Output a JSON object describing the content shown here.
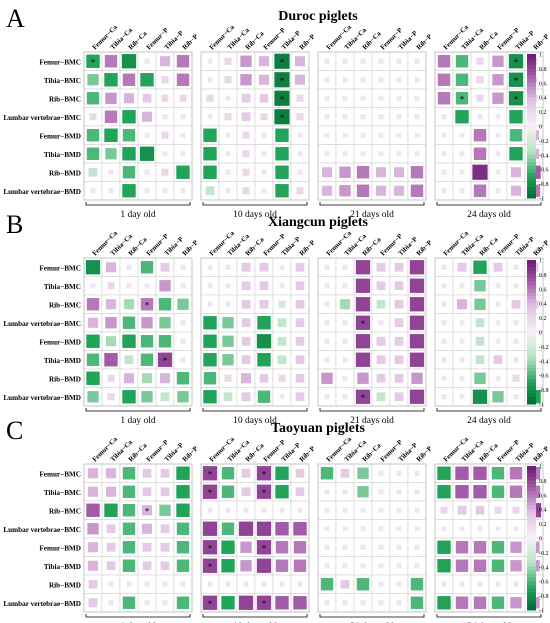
{
  "colors": {
    "negative_strong": "#006b33",
    "negative_mid": "#22a35a",
    "negative_light": "#b9e4c6",
    "neutral": "#f4f2f5",
    "positive_light": "#e2c3e4",
    "positive_mid": "#a35aa8",
    "positive_strong": "#6a1771"
  },
  "legend_ticks": [
    "1",
    "0.8",
    "0.6",
    "0.4",
    "0.2",
    "0",
    "-0.2",
    "-0.4",
    "-0.6",
    "-0.8",
    "-1"
  ],
  "chart_data": [
    {
      "type": "heatmap",
      "panel_letter": "A",
      "title": "Duroc piglets",
      "rows": [
        "Femur−BMC",
        "Tibia−BMC",
        "Rib−BMC",
        "Lumbar vertebrae−BMC",
        "Femur−BMD",
        "Tibia−BMD",
        "Rib−BMD",
        "Lumbar vertebrae−BMD"
      ],
      "columns": [
        "Femur−Ca",
        "Tibia−Ca",
        "Rib−Ca",
        "Femur−P",
        "Tibia−P",
        "Rib−P"
      ],
      "groups": [
        {
          "name": "1 day old",
          "values": [
            [
              -0.7,
              0.6,
              -0.8,
              0.1,
              0.4,
              0.6
            ],
            [
              -0.5,
              -0.7,
              0.6,
              -0.7,
              0.2,
              0.6
            ],
            [
              -0.6,
              0.5,
              0.4,
              0.3,
              0.2,
              0.2
            ],
            [
              0.2,
              0.6,
              -0.7,
              0.4,
              0.1,
              0.1
            ],
            [
              -0.6,
              -0.7,
              -0.6,
              0.1,
              0.2,
              0.1
            ],
            [
              -0.6,
              -0.5,
              -0.7,
              -0.8,
              0.1,
              0.1
            ],
            [
              -0.3,
              0.1,
              -0.6,
              0.1,
              0.2,
              -0.7
            ],
            [
              0.1,
              0.1,
              -0.7,
              0.1,
              0.1,
              0.1
            ]
          ],
          "stars": [
            [
              0,
              0
            ]
          ]
        },
        {
          "name": "10 days old",
          "values": [
            [
              0.1,
              0.2,
              0.5,
              0.4,
              -0.9,
              0.4
            ],
            [
              0.1,
              0.2,
              0.5,
              0.4,
              -0.9,
              0.4
            ],
            [
              0.2,
              0.1,
              0.3,
              0.3,
              -0.9,
              0.2
            ],
            [
              0.1,
              0.2,
              0.3,
              0.2,
              -0.9,
              0.2
            ],
            [
              -0.7,
              0.1,
              0.2,
              0.1,
              -0.7,
              0.1
            ],
            [
              -0.7,
              0.1,
              0.2,
              0.1,
              -0.7,
              0.1
            ],
            [
              -0.7,
              0.1,
              0.2,
              0.1,
              -0.7,
              0.1
            ],
            [
              -0.3,
              0.1,
              0.2,
              0.1,
              -0.7,
              0.2
            ]
          ],
          "stars": [
            [
              0,
              4
            ],
            [
              1,
              4
            ],
            [
              2,
              4
            ],
            [
              3,
              4
            ]
          ]
        },
        {
          "name": "21 days old",
          "values": [
            [
              0.1,
              0.1,
              0.1,
              0.1,
              0.1,
              0.1
            ],
            [
              0.1,
              0.1,
              0.1,
              0.1,
              0.1,
              0.1
            ],
            [
              0.1,
              0.1,
              0.1,
              0.1,
              0.1,
              0.1
            ],
            [
              0.1,
              0.1,
              0.1,
              0.1,
              0.1,
              0.1
            ],
            [
              0.1,
              0.1,
              0.1,
              0.1,
              0.1,
              0.1
            ],
            [
              0.1,
              0.1,
              0.1,
              0.1,
              0.1,
              0.1
            ],
            [
              0.4,
              0.5,
              0.6,
              0.4,
              0.4,
              0.6
            ],
            [
              0.4,
              0.5,
              0.6,
              0.4,
              0.4,
              0.6
            ]
          ],
          "stars": []
        },
        {
          "name": "24 days old",
          "values": [
            [
              0.6,
              -0.6,
              0.2,
              0.5,
              -0.8,
              0.2
            ],
            [
              0.6,
              -0.6,
              0.2,
              0.5,
              -0.8,
              0.2
            ],
            [
              0.6,
              -0.6,
              0.2,
              0.5,
              -0.8,
              0.2
            ],
            [
              0.1,
              -0.7,
              0.1,
              0.1,
              -0.7,
              0.1
            ],
            [
              0.1,
              0.1,
              0.6,
              0.1,
              -0.6,
              0.4
            ],
            [
              0.1,
              0.1,
              0.6,
              0.1,
              -0.7,
              0.4
            ],
            [
              0.1,
              0.1,
              0.9,
              0.1,
              0.4,
              0.7
            ],
            [
              0.1,
              0.1,
              0.6,
              0.1,
              0.4,
              0.6
            ]
          ],
          "stars": [
            [
              0,
              4
            ],
            [
              1,
              4
            ],
            [
              2,
              1
            ],
            [
              2,
              4
            ]
          ]
        }
      ]
    },
    {
      "type": "heatmap",
      "panel_letter": "B",
      "title": "Xiangcun piglets",
      "rows": [
        "Femur−BMC",
        "Tibia−BMC",
        "Rib−BMC",
        "Lumbar vertebrae−BMC",
        "Femur−BMD",
        "Tibia−BMD",
        "Rib−BMD",
        "Lumbar vertebrae−BMD"
      ],
      "columns": [
        "Femur−Ca",
        "Tibia−Ca",
        "Rib−Ca",
        "Femur−P",
        "Tibia−P",
        "Rib−P"
      ],
      "groups": [
        {
          "name": "1 day old",
          "values": [
            [
              -0.8,
              0.4,
              0.1,
              -0.6,
              0.3,
              0.1
            ],
            [
              0.1,
              0.2,
              0.1,
              0.1,
              0.5,
              0.1
            ],
            [
              0.6,
              0.4,
              -0.4,
              0.6,
              -0.6,
              -0.5
            ],
            [
              0.4,
              0.5,
              -0.6,
              0.5,
              -0.5,
              0.1
            ],
            [
              -0.7,
              -0.4,
              -0.7,
              -0.6,
              -0.6,
              0.1
            ],
            [
              -0.6,
              0.7,
              -0.3,
              -0.6,
              0.8,
              0.1
            ],
            [
              -0.7,
              0.2,
              0.4,
              -0.4,
              0.4,
              -0.6
            ],
            [
              -0.5,
              0.2,
              -0.7,
              -0.5,
              -0.3,
              -0.5
            ]
          ],
          "stars": [
            [
              2,
              3
            ],
            [
              5,
              4
            ]
          ]
        },
        {
          "name": "10 days old",
          "values": [
            [
              0.1,
              0.1,
              0.3,
              0.3,
              0.1,
              0.3
            ],
            [
              0.1,
              0.1,
              0.3,
              0.3,
              0.1,
              0.3
            ],
            [
              0.1,
              0.1,
              0.3,
              0.3,
              -0.2,
              0.3
            ],
            [
              -0.7,
              -0.5,
              0.3,
              -0.7,
              -0.3,
              0.3
            ],
            [
              -0.7,
              -0.5,
              0.3,
              -0.8,
              -0.3,
              0.3
            ],
            [
              -0.7,
              -0.5,
              0.3,
              -0.7,
              -0.3,
              0.3
            ],
            [
              -0.6,
              0.2,
              0.4,
              0.3,
              0.2,
              0.3
            ],
            [
              -0.7,
              -0.3,
              0.3,
              -0.6,
              0.1,
              0.3
            ]
          ],
          "stars": []
        },
        {
          "name": "21 days old",
          "values": [
            [
              0.1,
              0.1,
              0.8,
              0.3,
              0.3,
              0.8
            ],
            [
              0.1,
              0.1,
              0.8,
              0.3,
              0.3,
              0.8
            ],
            [
              0.1,
              -0.4,
              0.8,
              -0.3,
              0.3,
              0.8
            ],
            [
              0.1,
              0.1,
              0.8,
              0.1,
              0.3,
              0.8
            ],
            [
              0.1,
              0.1,
              0.8,
              0.3,
              0.3,
              0.8
            ],
            [
              0.1,
              0.1,
              0.8,
              0.3,
              0.3,
              0.8
            ],
            [
              0.5,
              0.1,
              0.5,
              0.3,
              0.3,
              0.5
            ],
            [
              0.1,
              0.1,
              0.8,
              -0.3,
              0.3,
              0.8
            ]
          ],
          "stars": [
            [
              3,
              2
            ],
            [
              7,
              2
            ]
          ]
        },
        {
          "name": "24 days old",
          "values": [
            [
              0.1,
              0.3,
              -0.7,
              0.3,
              0.1,
              0.3
            ],
            [
              0.1,
              0.1,
              -0.5,
              0.1,
              0.1,
              0.1
            ],
            [
              0.1,
              0.4,
              -0.5,
              0.1,
              0.3,
              0.3
            ],
            [
              0.1,
              0.1,
              -0.3,
              0.1,
              0.1,
              0.1
            ],
            [
              0.1,
              0.1,
              -0.3,
              0.1,
              0.1,
              0.1
            ],
            [
              0.1,
              0.1,
              -0.3,
              0.3,
              0.1,
              0.1
            ],
            [
              0.1,
              0.1,
              -0.5,
              0.1,
              0.2,
              0.1
            ],
            [
              0.1,
              0.1,
              -0.8,
              -0.5,
              0.1,
              -0.7
            ]
          ],
          "stars": []
        }
      ]
    },
    {
      "type": "heatmap",
      "panel_letter": "C",
      "title": "Taoyuan piglets",
      "rows": [
        "Femur−BMC",
        "Tibia−BMC",
        "Rib−BMC",
        "Lumbar vertebrae−BMC",
        "Femur−BMD",
        "Tibia−BMD",
        "Rib−BMD",
        "Lumbar vertebrae−BMD"
      ],
      "columns": [
        "Femur−Ca",
        "Tibia−Ca",
        "Rib−Ca",
        "Femur−P",
        "Tibia−P",
        "Rib−P"
      ],
      "groups": [
        {
          "name": "1 day old",
          "values": [
            [
              0.4,
              0.4,
              -0.6,
              0.3,
              0.3,
              -0.7
            ],
            [
              0.4,
              0.4,
              -0.6,
              0.3,
              0.3,
              -0.7
            ],
            [
              0.7,
              -0.7,
              -0.6,
              0.4,
              -0.5,
              -0.7
            ],
            [
              0.5,
              0.3,
              -0.6,
              0.4,
              0.3,
              -0.6
            ],
            [
              0.4,
              0.3,
              -0.6,
              0.3,
              0.3,
              -0.6
            ],
            [
              0.4,
              0.3,
              -0.6,
              0.3,
              0.3,
              -0.6
            ],
            [
              0.3,
              0.1,
              0.1,
              0.1,
              0.1,
              0.1
            ],
            [
              0.3,
              0.1,
              -0.6,
              0.1,
              0.1,
              -0.6
            ]
          ],
          "stars": [
            [
              2,
              3
            ]
          ]
        },
        {
          "name": "10 days old",
          "values": [
            [
              0.8,
              -0.6,
              0.3,
              0.8,
              -0.7,
              0.3
            ],
            [
              0.8,
              -0.6,
              0.3,
              0.8,
              -0.7,
              0.3
            ],
            [
              0.1,
              0.1,
              0.1,
              0.1,
              0.1,
              0.1
            ],
            [
              0.8,
              -0.6,
              0.8,
              0.8,
              0.7,
              0.7
            ],
            [
              0.8,
              -0.7,
              0.5,
              0.8,
              0.6,
              0.6
            ],
            [
              0.8,
              -0.7,
              0.5,
              0.8,
              0.6,
              0.6
            ],
            [
              0.1,
              0.1,
              0.1,
              0.1,
              0.1,
              0.1
            ],
            [
              0.8,
              -0.7,
              0.8,
              0.8,
              0.7,
              0.7
            ]
          ],
          "stars": [
            [
              0,
              0
            ],
            [
              0,
              3
            ],
            [
              1,
              0
            ],
            [
              1,
              3
            ],
            [
              4,
              0
            ],
            [
              4,
              3
            ],
            [
              5,
              0
            ],
            [
              7,
              0
            ],
            [
              7,
              3
            ]
          ]
        },
        {
          "name": "21 days old",
          "values": [
            [
              -0.6,
              0.3,
              -0.5,
              0.1,
              0.1,
              0.1
            ],
            [
              0.1,
              0.1,
              -0.5,
              0.1,
              0.1,
              0.1
            ],
            [
              0.1,
              0.1,
              0.1,
              0.1,
              0.1,
              0.1
            ],
            [
              0.1,
              0.1,
              0.1,
              0.1,
              0.1,
              0.1
            ],
            [
              0.1,
              0.1,
              0.1,
              0.1,
              0.1,
              0.1
            ],
            [
              0.1,
              0.1,
              0.1,
              0.1,
              0.1,
              0.1
            ],
            [
              -0.6,
              0.3,
              -0.6,
              0.1,
              0.1,
              -0.6
            ],
            [
              0.1,
              0.1,
              0.1,
              0.1,
              0.1,
              -0.6
            ]
          ],
          "stars": []
        },
        {
          "name": "24 days old",
          "values": [
            [
              -0.7,
              0.7,
              0.7,
              -0.6,
              0.6,
              0.6
            ],
            [
              -0.7,
              0.7,
              0.7,
              -0.6,
              0.6,
              0.6
            ],
            [
              0.2,
              0.3,
              0.3,
              0.2,
              0.2,
              0.8
            ],
            [
              0.1,
              0.1,
              0.1,
              0.1,
              0.1,
              0.1
            ],
            [
              -0.7,
              0.6,
              0.6,
              -0.6,
              0.5,
              0.5
            ],
            [
              -0.7,
              0.6,
              0.6,
              -0.6,
              0.5,
              0.5
            ],
            [
              0.1,
              0.1,
              0.1,
              0.1,
              0.1,
              0.1
            ],
            [
              -0.7,
              0.6,
              0.6,
              -0.6,
              0.5,
              0.5
            ]
          ],
          "stars": [
            [
              2,
              5
            ]
          ]
        }
      ]
    }
  ]
}
